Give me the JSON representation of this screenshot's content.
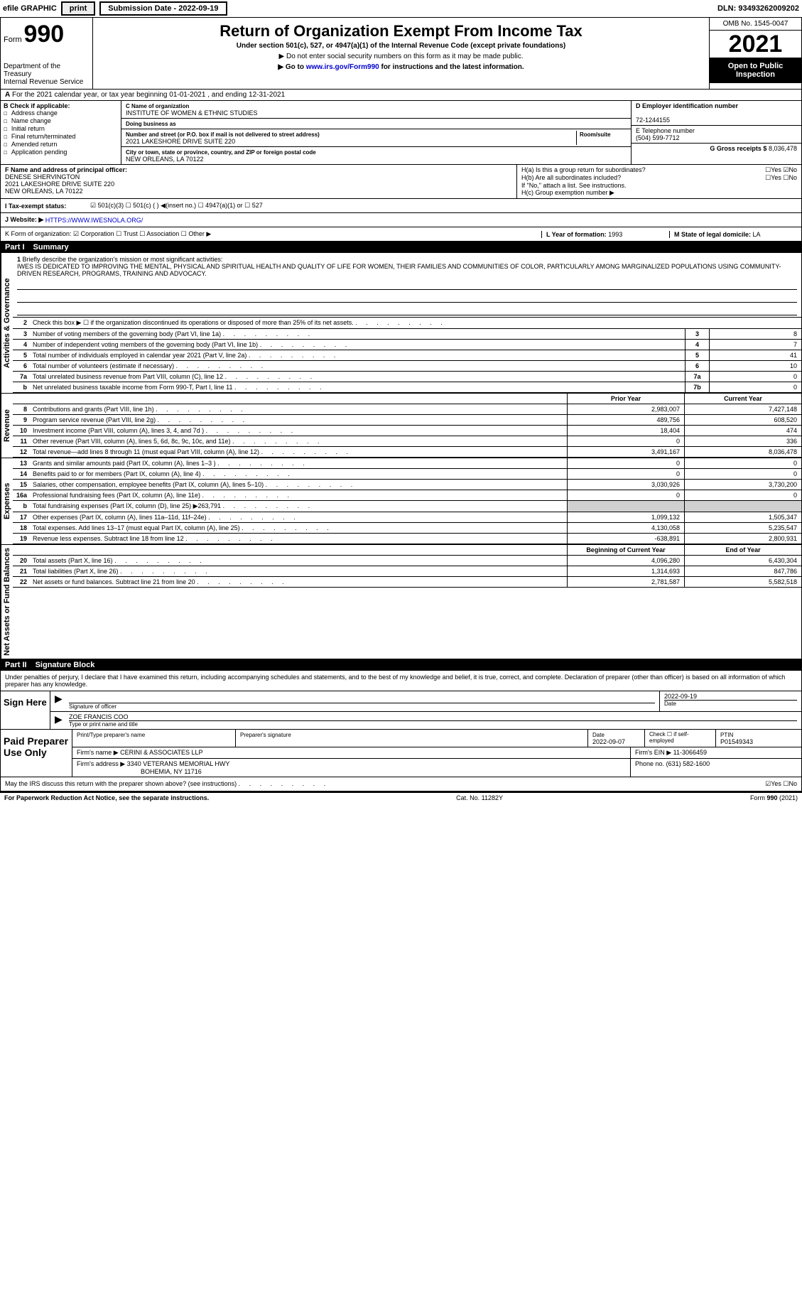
{
  "colors": {
    "text": "#000000",
    "bg": "#ffffff",
    "link": "#0000cc",
    "header_bg": "#000000",
    "header_fg": "#ffffff",
    "shade": "#d0d0d0"
  },
  "topbar": {
    "efile": "efile GRAPHIC",
    "print": "print",
    "submission": "Submission Date - 2022-09-19",
    "dln": "DLN: 93493262009202"
  },
  "header": {
    "form_word": "Form",
    "form_no": "990",
    "dept1": "Department of the Treasury",
    "dept2": "Internal Revenue Service",
    "title": "Return of Organization Exempt From Income Tax",
    "subtitle": "Under section 501(c), 527, or 4947(a)(1) of the Internal Revenue Code (except private foundations)",
    "note1": "▶ Do not enter social security numbers on this form as it may be made public.",
    "note2_pre": "▶ Go to ",
    "note2_link": "www.irs.gov/Form990",
    "note2_post": " for instructions and the latest information.",
    "omb": "OMB No. 1545-0047",
    "year": "2021",
    "badge": "Open to Public Inspection"
  },
  "row_a": "For the 2021 calendar year, or tax year beginning 01-01-2021    , and ending 12-31-2021",
  "section_b": {
    "label": "B Check if applicable:",
    "items": [
      "Address change",
      "Name change",
      "Initial return",
      "Final return/terminated",
      "Amended return",
      "Application pending"
    ]
  },
  "section_c": {
    "name_lbl": "C Name of organization",
    "name": "INSTITUTE OF WOMEN & ETHNIC STUDIES",
    "dba_lbl": "Doing business as",
    "dba": "",
    "addr_lbl": "Number and street (or P.O. box if mail is not delivered to street address)",
    "room_lbl": "Room/suite",
    "addr": "2021 LAKESHORE DRIVE SUITE 220",
    "city_lbl": "City or town, state or province, country, and ZIP or foreign postal code",
    "city": "NEW ORLEANS, LA  70122"
  },
  "section_de": {
    "d_lbl": "D Employer identification number",
    "ein": "72-1244155",
    "e_lbl": "E Telephone number",
    "phone": "(504) 599-7712",
    "g_lbl": "G Gross receipts $",
    "gross": "8,036,478"
  },
  "section_f": {
    "lbl": "F Name and address of principal officer:",
    "name": "DENESE SHERVINGTON",
    "addr1": "2021 LAKESHORE DRIVE SUITE 220",
    "addr2": "NEW ORLEANS, LA  70122"
  },
  "section_h": {
    "ha": "H(a)  Is this a group return for subordinates?",
    "ha_ans": "☐Yes ☑No",
    "hb": "H(b)  Are all subordinates included?",
    "hb_ans": "☐Yes ☐No",
    "hb_note": "If \"No,\" attach a list. See instructions.",
    "hc": "H(c)  Group exemption number ▶"
  },
  "row_i": {
    "lbl": "I  Tax-exempt status:",
    "opts": "☑ 501(c)(3)   ☐ 501(c) (  ) ◀(insert no.)   ☐ 4947(a)(1) or   ☐ 527"
  },
  "row_j": {
    "lbl": "J  Website: ▶",
    "url": "HTTPS://WWW.IWESNOLA.ORG/"
  },
  "row_k": "K Form of organization:  ☑ Corporation  ☐ Trust  ☐ Association  ☐ Other ▶",
  "row_l": {
    "year_lbl": "L Year of formation:",
    "year": "1993",
    "state_lbl": "M State of legal domicile:",
    "state": "LA"
  },
  "part1": {
    "label": "Part I",
    "title": "Summary"
  },
  "mission": {
    "n": "1",
    "lbl": "Briefly describe the organization's mission or most significant activities:",
    "text": "IWES IS DEDICATED TO IMPROVING THE MENTAL, PHYSICAL AND SPIRITUAL HEALTH AND QUALITY OF LIFE FOR WOMEN, THEIR FAMILIES AND COMMUNITIES OF COLOR, PARTICULARLY AMONG MARGINALIZED POPULATIONS USING COMMUNITY-DRIVEN RESEARCH, PROGRAMS, TRAINING AND ADVOCACY."
  },
  "governance_rows": [
    {
      "n": "2",
      "t": "Check this box ▶ ☐ if the organization discontinued its operations or disposed of more than 25% of its net assets.",
      "bx": "",
      "val": ""
    },
    {
      "n": "3",
      "t": "Number of voting members of the governing body (Part VI, line 1a)",
      "bx": "3",
      "val": "8"
    },
    {
      "n": "4",
      "t": "Number of independent voting members of the governing body (Part VI, line 1b)",
      "bx": "4",
      "val": "7"
    },
    {
      "n": "5",
      "t": "Total number of individuals employed in calendar year 2021 (Part V, line 2a)",
      "bx": "5",
      "val": "41"
    },
    {
      "n": "6",
      "t": "Total number of volunteers (estimate if necessary)",
      "bx": "6",
      "val": "10"
    },
    {
      "n": "7a",
      "t": "Total unrelated business revenue from Part VIII, column (C), line 12",
      "bx": "7a",
      "val": "0"
    },
    {
      "n": "b",
      "t": "Net unrelated business taxable income from Form 990-T, Part I, line 11",
      "bx": "7b",
      "val": "0"
    }
  ],
  "fin_header": {
    "c1": "Prior Year",
    "c2": "Current Year"
  },
  "revenue_rows": [
    {
      "n": "8",
      "t": "Contributions and grants (Part VIII, line 1h)",
      "c1": "2,983,007",
      "c2": "7,427,148"
    },
    {
      "n": "9",
      "t": "Program service revenue (Part VIII, line 2g)",
      "c1": "489,756",
      "c2": "608,520"
    },
    {
      "n": "10",
      "t": "Investment income (Part VIII, column (A), lines 3, 4, and 7d )",
      "c1": "18,404",
      "c2": "474"
    },
    {
      "n": "11",
      "t": "Other revenue (Part VIII, column (A), lines 5, 6d, 8c, 9c, 10c, and 11e)",
      "c1": "0",
      "c2": "336"
    },
    {
      "n": "12",
      "t": "Total revenue—add lines 8 through 11 (must equal Part VIII, column (A), line 12)",
      "c1": "3,491,167",
      "c2": "8,036,478"
    }
  ],
  "expense_rows": [
    {
      "n": "13",
      "t": "Grants and similar amounts paid (Part IX, column (A), lines 1–3 )",
      "c1": "0",
      "c2": "0"
    },
    {
      "n": "14",
      "t": "Benefits paid to or for members (Part IX, column (A), line 4)",
      "c1": "0",
      "c2": "0"
    },
    {
      "n": "15",
      "t": "Salaries, other compensation, employee benefits (Part IX, column (A), lines 5–10)",
      "c1": "3,030,926",
      "c2": "3,730,200"
    },
    {
      "n": "16a",
      "t": "Professional fundraising fees (Part IX, column (A), line 11e)",
      "c1": "0",
      "c2": "0"
    },
    {
      "n": "b",
      "t": "Total fundraising expenses (Part IX, column (D), line 25) ▶263,791",
      "c1": "",
      "c2": "",
      "shade": true
    },
    {
      "n": "17",
      "t": "Other expenses (Part IX, column (A), lines 11a–11d, 11f–24e)",
      "c1": "1,099,132",
      "c2": "1,505,347"
    },
    {
      "n": "18",
      "t": "Total expenses. Add lines 13–17 (must equal Part IX, column (A), line 25)",
      "c1": "4,130,058",
      "c2": "5,235,547"
    },
    {
      "n": "19",
      "t": "Revenue less expenses. Subtract line 18 from line 12",
      "c1": "-638,891",
      "c2": "2,800,931"
    }
  ],
  "net_header": {
    "c1": "Beginning of Current Year",
    "c2": "End of Year"
  },
  "net_rows": [
    {
      "n": "20",
      "t": "Total assets (Part X, line 16)",
      "c1": "4,096,280",
      "c2": "6,430,304"
    },
    {
      "n": "21",
      "t": "Total liabilities (Part X, line 26)",
      "c1": "1,314,693",
      "c2": "847,786"
    },
    {
      "n": "22",
      "t": "Net assets or fund balances. Subtract line 21 from line 20",
      "c1": "2,781,587",
      "c2": "5,582,518"
    }
  ],
  "side_labels": {
    "gov": "Activities & Governance",
    "rev": "Revenue",
    "exp": "Expenses",
    "net": "Net Assets or Fund Balances"
  },
  "part2": {
    "label": "Part II",
    "title": "Signature Block"
  },
  "sig": {
    "decl": "Under penalties of perjury, I declare that I have examined this return, including accompanying schedules and statements, and to the best of my knowledge and belief, it is true, correct, and complete. Declaration of preparer (other than officer) is based on all information of which preparer has any knowledge.",
    "sign_lbl": "Sign Here",
    "sig_officer": "Signature of officer",
    "date": "2022-09-19",
    "date_lbl": "Date",
    "name": "ZOE FRANCIS COO",
    "name_lbl": "Type or print name and title"
  },
  "prep": {
    "lbl": "Paid Preparer Use Only",
    "col1": "Print/Type preparer's name",
    "col2": "Preparer's signature",
    "col3_lbl": "Date",
    "col3": "2022-09-07",
    "col4": "Check ☐ if self-employed",
    "col5_lbl": "PTIN",
    "col5": "P01549343",
    "firm_lbl": "Firm's name    ▶",
    "firm": "CERINI & ASSOCIATES LLP",
    "ein_lbl": "Firm's EIN ▶",
    "ein": "11-3066459",
    "addr_lbl": "Firm's address ▶",
    "addr1": "3340 VETERANS MEMORIAL HWY",
    "addr2": "BOHEMIA, NY  11716",
    "phone_lbl": "Phone no.",
    "phone": "(631) 582-1600"
  },
  "discuss": {
    "q": "May the IRS discuss this return with the preparer shown above? (see instructions)",
    "ans": "☑Yes  ☐No"
  },
  "footer": {
    "left": "For Paperwork Reduction Act Notice, see the separate instructions.",
    "mid": "Cat. No. 11282Y",
    "right": "Form 990 (2021)"
  }
}
